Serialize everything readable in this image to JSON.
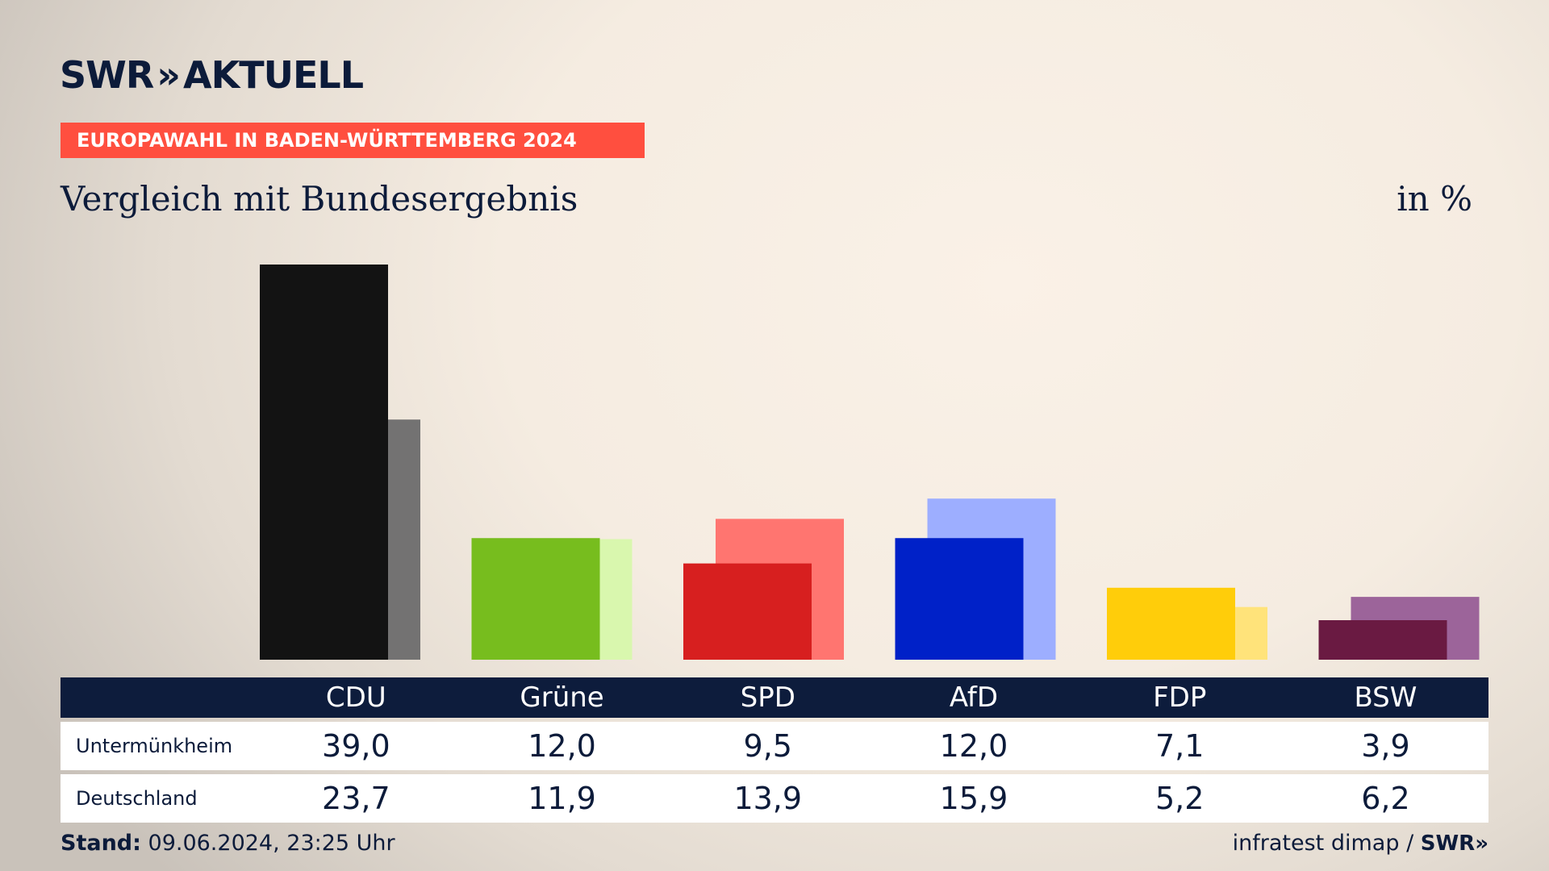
{
  "brand": {
    "logo_left": "SWR",
    "logo_chevrons": "»",
    "logo_right": "AKTUELL",
    "mini_logo": "SWR»"
  },
  "banner": "EUROPAWAHL IN BADEN-WÜRTTEMBERG 2024",
  "subtitle": "Vergleich mit Bundesergebnis",
  "unit": "in %",
  "table": {
    "columns": [
      "CDU",
      "Grüne",
      "SPD",
      "AfD",
      "FDP",
      "BSW"
    ],
    "rows": [
      {
        "label": "Untermünkheim",
        "values": [
          "39,0",
          "12,0",
          "9,5",
          "12,0",
          "7,1",
          "3,9"
        ]
      },
      {
        "label": "Deutschland",
        "values": [
          "23,7",
          "11,9",
          "13,9",
          "15,9",
          "5,2",
          "6,2"
        ]
      }
    ]
  },
  "footer": {
    "stand_label": "Stand:",
    "stand_value": "09.06.2024, 23:25 Uhr",
    "source": "infratest dimap /"
  },
  "chart_data": {
    "type": "bar",
    "title": "Vergleich mit Bundesergebnis",
    "unit": "in %",
    "categories": [
      "CDU",
      "Grüne",
      "SPD",
      "AfD",
      "FDP",
      "BSW"
    ],
    "series": [
      {
        "name": "Untermünkheim",
        "values": [
          39.0,
          12.0,
          9.5,
          12.0,
          7.1,
          3.9
        ],
        "colors": [
          "#131313",
          "#77bd1e",
          "#d71f1f",
          "#0021c8",
          "#ffcd0a",
          "#6a1a42"
        ]
      },
      {
        "name": "Deutschland",
        "values": [
          23.7,
          11.9,
          13.9,
          15.9,
          5.2,
          6.2
        ],
        "colors": [
          "#737272",
          "#d9f7ae",
          "#ff7570",
          "#9daeff",
          "#ffe37a",
          "#9c649a"
        ]
      }
    ],
    "ylim": [
      0,
      39.0
    ],
    "grid": false,
    "legend": "table-below"
  }
}
